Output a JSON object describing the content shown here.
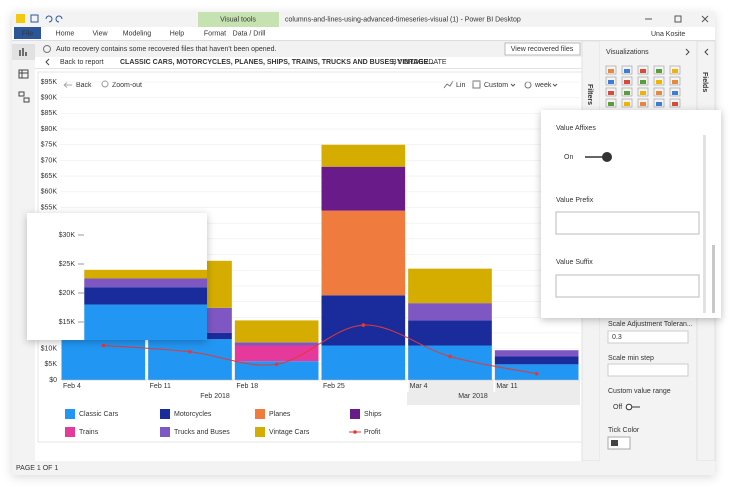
{
  "window": {
    "title": "columns-and-lines-using-advanced-timeseries-visual (1) - Power BI Desktop",
    "user": "Una Kosite",
    "contextual_tab": "Visual tools",
    "tabs": [
      "File",
      "Home",
      "View",
      "Modeling",
      "Help",
      "Format",
      "Data / Drill"
    ]
  },
  "notification": {
    "message": "Auto recovery contains some recovered files that haven't been opened.",
    "button": "View recovered files"
  },
  "drill_header": {
    "back": "Back to report",
    "fields": "CLASSIC CARS, MOTORCYCLES, PLANES, SHIPS, TRAINS, TRUCKS AND BUSES, VINTAGE...",
    "by": "BY ORDERDATE"
  },
  "toolbar": {
    "back": "Back",
    "zoom_out": "Zoom-out",
    "scale": "Lin",
    "range": "Custom",
    "interval": "week"
  },
  "chart_data": {
    "type": "bar",
    "stacked": true,
    "grid": true,
    "categories": [
      "Feb 4",
      "Feb 11",
      "Feb 18",
      "Feb 25",
      "Mar 4",
      "Mar 11"
    ],
    "periods": [
      "Feb 2018",
      "Mar 2018"
    ],
    "series": [
      {
        "name": "Classic Cars",
        "color": "#2196f3",
        "values": [
          18000,
          13000,
          6000,
          11000,
          11000,
          5000
        ]
      },
      {
        "name": "Motorcycles",
        "color": "#1a2c9c",
        "values": [
          3000,
          2000,
          0,
          16000,
          8000,
          2500
        ]
      },
      {
        "name": "Planes",
        "color": "#f07b3f",
        "values": [
          0,
          0,
          0,
          27000,
          0,
          0
        ]
      },
      {
        "name": "Ships",
        "color": "#6a1b8a",
        "values": [
          0,
          0,
          0,
          14000,
          0,
          0
        ]
      },
      {
        "name": "Trains",
        "color": "#e5399b",
        "values": [
          0,
          0,
          5000,
          0,
          0,
          0
        ]
      },
      {
        "name": "Trucks and Buses",
        "color": "#7e57c2",
        "values": [
          1500,
          8000,
          1000,
          0,
          5500,
          2000
        ]
      },
      {
        "name": "Vintage Cars",
        "color": "#d4ad00",
        "values": [
          1500,
          15000,
          7000,
          7000,
          11000,
          0
        ]
      },
      {
        "name": "Profit",
        "type": "line",
        "color": "#e53935",
        "values": [
          11000,
          9000,
          5000,
          17500,
          7500,
          2000
        ]
      }
    ],
    "ylim": [
      0,
      95000
    ],
    "yticks": [
      {
        "value": 0,
        "label": "$0"
      },
      {
        "value": 5000,
        "label": "$5K"
      },
      {
        "value": 10000,
        "label": "$10K"
      },
      {
        "value": 15000,
        "label": "$15K"
      },
      {
        "value": 20000,
        "label": "$20K"
      },
      {
        "value": 25000,
        "label": "$25K"
      },
      {
        "value": 30000,
        "label": "$30K"
      },
      {
        "value": 35000,
        "label": "$35K"
      },
      {
        "value": 40000,
        "label": "$40K"
      },
      {
        "value": 45000,
        "label": "$45K"
      },
      {
        "value": 50000,
        "label": "$50K"
      },
      {
        "value": 55000,
        "label": "$55K"
      },
      {
        "value": 60000,
        "label": "$60K"
      },
      {
        "value": 65000,
        "label": "$65K"
      },
      {
        "value": 70000,
        "label": "$70K"
      },
      {
        "value": 75000,
        "label": "$75K"
      },
      {
        "value": 80000,
        "label": "$80K"
      },
      {
        "value": 85000,
        "label": "$85K"
      },
      {
        "value": 90000,
        "label": "$90K"
      },
      {
        "value": 95000,
        "label": "$95K"
      }
    ],
    "zoom_yticks": [
      {
        "value": 30000,
        "label": "$30K"
      },
      {
        "value": 25000,
        "label": "$25K"
      },
      {
        "value": 20000,
        "label": "$20K"
      },
      {
        "value": 15000,
        "label": "$15K"
      }
    ]
  },
  "visualizations_pane": {
    "title": "Visualizations",
    "filters": "Filters",
    "fields": "Fields",
    "scale_tolerance": "Scale Adjustment Toleran...",
    "scale_tolerance_value": "0.3",
    "scale_min_step": "Scale min step",
    "custom_range": "Custom value range",
    "custom_range_state": "Off",
    "tick_color": "Tick Color"
  },
  "value_affixes_panel": {
    "title": "Value Affixes",
    "state": "On",
    "prefix": "Value Prefix",
    "suffix": "Value Suffix"
  },
  "status_bar": {
    "page": "PAGE 1 OF 1"
  }
}
